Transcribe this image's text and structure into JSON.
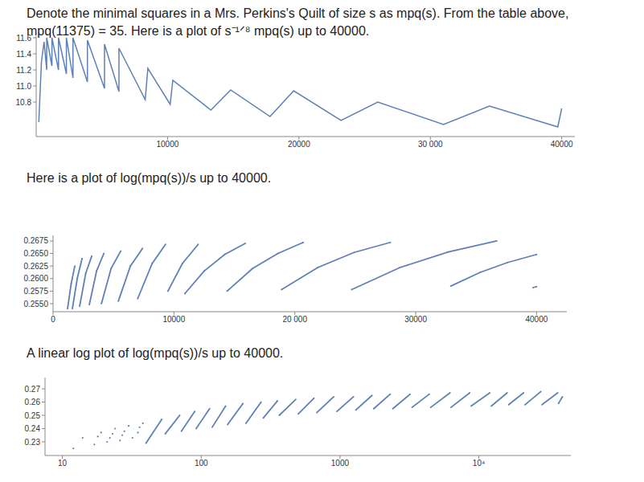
{
  "chart_data": [
    {
      "type": "line",
      "title": "Denote the minimal squares in a Mrs. Perkins's Quilt of size s as mpq(s). From the table above,\nmpq(11375) = 35. Here is a plot of s⁻¹ᐟ⁸ mpq(s) up to 40000.",
      "color": "#5e81b5",
      "grid": false,
      "xlim": [
        0,
        41000
      ],
      "xticks": [
        10000,
        20000,
        {
          "value": 30000,
          "label": "30 000"
        },
        40000
      ],
      "ylim": [
        10.37,
        11.62
      ],
      "yticks": [
        10.8,
        {
          "value": 11,
          "label": "11.0"
        },
        11.2,
        11.4,
        11.6
      ],
      "x": [
        200,
        400,
        600,
        800,
        800,
        1200,
        1200,
        1700,
        1700,
        2300,
        2300,
        2800,
        2800,
        3900,
        3900,
        5200,
        5200,
        6300,
        6300,
        8300,
        8500,
        10200,
        10400,
        13300,
        14800,
        17800,
        19600,
        23200,
        26000,
        31000,
        34500,
        39700,
        40000
      ],
      "values": [
        10.55,
        11.3,
        11.55,
        11.2,
        11.6,
        11.25,
        11.6,
        11.2,
        11.6,
        11.15,
        11.6,
        11.1,
        11.6,
        11.05,
        11.57,
        10.97,
        11.52,
        10.93,
        11.47,
        10.83,
        11.22,
        10.77,
        11.07,
        10.7,
        10.95,
        10.62,
        10.94,
        10.57,
        10.8,
        10.52,
        10.75,
        10.49,
        10.72
      ]
    },
    {
      "type": "scatter",
      "title": "Here is a plot of log(mpq(s))/s up to 40000.",
      "grid": false,
      "xlim": [
        0,
        42500
      ],
      "xticks": [
        0,
        10000,
        {
          "value": 20000,
          "label": "20 000"
        },
        30000,
        40000
      ],
      "ylim": [
        0.2534,
        0.2686
      ],
      "yticks": [
        {
          "value": 0.255,
          "label": "0.2550"
        },
        0.2575,
        {
          "value": 0.26,
          "label": "0.2600"
        },
        0.2625,
        {
          "value": 0.265,
          "label": "0.2650"
        },
        0.2675
      ],
      "series": [
        {
          "color": "#5e81b5",
          "line_style": "solid",
          "x": [
            1200,
            1500,
            1800
          ],
          "values": [
            0.254,
            0.259,
            0.2625
          ]
        },
        {
          "color": "#5e81b5",
          "line_style": "solid",
          "x": [
            1600,
            2000,
            2400
          ],
          "values": [
            0.254,
            0.26,
            0.264
          ]
        },
        {
          "color": "#5e81b5",
          "line_style": "solid",
          "x": [
            2200,
            2700,
            3200
          ],
          "values": [
            0.2545,
            0.261,
            0.2645
          ]
        },
        {
          "color": "#5e81b5",
          "line_style": "solid",
          "x": [
            3000,
            3600,
            4200
          ],
          "values": [
            0.2548,
            0.2615,
            0.265
          ]
        },
        {
          "color": "#5e81b5",
          "line_style": "solid",
          "x": [
            4000,
            4800,
            5600
          ],
          "values": [
            0.255,
            0.262,
            0.2655
          ]
        },
        {
          "color": "#5e81b5",
          "line_style": "solid",
          "x": [
            5400,
            6400,
            7400
          ],
          "values": [
            0.2555,
            0.2625,
            0.266
          ]
        },
        {
          "color": "#5e81b5",
          "line_style": "solid",
          "x": [
            7000,
            8200,
            9300
          ],
          "values": [
            0.256,
            0.263,
            0.2668
          ]
        },
        {
          "color": "#5e81b5",
          "line_style": "solid",
          "x": [
            9500,
            10700,
            12000
          ],
          "values": [
            0.2575,
            0.263,
            0.2668
          ]
        },
        {
          "color": "#5e81b5",
          "line_style": "solid",
          "x": [
            10900,
            12500,
            14200,
            15900
          ],
          "values": [
            0.257,
            0.2615,
            0.2648,
            0.267
          ]
        },
        {
          "color": "#5e81b5",
          "line_style": "solid",
          "x": [
            14400,
            16500,
            18600,
            20700
          ],
          "values": [
            0.2575,
            0.262,
            0.265,
            0.2672
          ]
        },
        {
          "color": "#5e81b5",
          "line_style": "solid",
          "x": [
            18900,
            21900,
            24900,
            27900
          ],
          "values": [
            0.2578,
            0.2622,
            0.2652,
            0.2672
          ]
        },
        {
          "color": "#5e81b5",
          "line_style": "solid",
          "x": [
            24700,
            28700,
            32700,
            36700
          ],
          "values": [
            0.2578,
            0.2622,
            0.2653,
            0.2675
          ]
        },
        {
          "color": "#5e81b5",
          "line_style": "solid",
          "x": [
            32900,
            35300,
            37600,
            40000
          ],
          "values": [
            0.2585,
            0.2612,
            0.2632,
            0.2648
          ]
        },
        {
          "color": "#5e81b5",
          "line_style": "solid",
          "x": [
            39700,
            40000
          ],
          "values": [
            0.2582,
            0.2584
          ]
        }
      ]
    },
    {
      "type": "scatter",
      "title": "A linear log plot of log(mpq(s))/s up to 40000.",
      "grid": false,
      "log": "x",
      "xlim": [
        7.5,
        46000
      ],
      "xticks": [
        10,
        100,
        1000,
        {
          "value": 10000,
          "label": "10⁴"
        }
      ],
      "ylim": [
        0.2197,
        0.2785
      ],
      "yticks": [
        0.23,
        0.24,
        0.25,
        0.26,
        0.27
      ],
      "series": [
        {
          "color": "#5e81b5",
          "line_style": "none",
          "x": [
            12,
            14,
            17,
            18,
            19,
            21,
            22,
            23,
            24,
            26,
            27,
            28,
            30,
            32,
            35,
            36,
            38
          ],
          "values": [
            0.225,
            0.233,
            0.228,
            0.234,
            0.237,
            0.23,
            0.233,
            0.236,
            0.24,
            0.231,
            0.235,
            0.238,
            0.242,
            0.233,
            0.237,
            0.241,
            0.244
          ]
        },
        {
          "color": "#5e81b5",
          "line_style": "solid",
          "x": [
            40,
            52
          ],
          "values": [
            0.229,
            0.247
          ]
        },
        {
          "color": "#5e81b5",
          "line_style": "solid",
          "x": [
            55,
            70
          ],
          "values": [
            0.236,
            0.25
          ]
        },
        {
          "color": "#5e81b5",
          "line_style": "solid",
          "x": [
            72,
            90
          ],
          "values": [
            0.238,
            0.253
          ]
        },
        {
          "color": "#5e81b5",
          "line_style": "solid",
          "x": [
            92,
            115
          ],
          "values": [
            0.24,
            0.255
          ]
        },
        {
          "color": "#5e81b5",
          "line_style": "solid",
          "x": [
            120,
            150
          ],
          "values": [
            0.241,
            0.257
          ]
        },
        {
          "color": "#5e81b5",
          "line_style": "solid",
          "x": [
            155,
            200
          ],
          "values": [
            0.243,
            0.259
          ]
        },
        {
          "color": "#5e81b5",
          "line_style": "solid",
          "x": [
            210,
            270
          ],
          "values": [
            0.244,
            0.26
          ]
        },
        {
          "color": "#5e81b5",
          "line_style": "solid",
          "x": [
            280,
            355
          ],
          "values": [
            0.248,
            0.261
          ]
        },
        {
          "color": "#5e81b5",
          "line_style": "solid",
          "x": [
            365,
            480
          ],
          "values": [
            0.25,
            0.262
          ]
        },
        {
          "color": "#5e81b5",
          "line_style": "solid",
          "x": [
            500,
            650
          ],
          "values": [
            0.251,
            0.263
          ]
        },
        {
          "color": "#5e81b5",
          "line_style": "solid",
          "x": [
            680,
            900
          ],
          "values": [
            0.252,
            0.264
          ]
        },
        {
          "color": "#5e81b5",
          "line_style": "solid",
          "x": [
            950,
            1250
          ],
          "values": [
            0.253,
            0.264
          ]
        },
        {
          "color": "#5e81b5",
          "line_style": "solid",
          "x": [
            1300,
            1700
          ],
          "values": [
            0.254,
            0.265
          ]
        },
        {
          "color": "#5e81b5",
          "line_style": "solid",
          "x": [
            1750,
            2300
          ],
          "values": [
            0.255,
            0.266
          ]
        },
        {
          "color": "#5e81b5",
          "line_style": "solid",
          "x": [
            2400,
            3200
          ],
          "values": [
            0.255,
            0.266
          ]
        },
        {
          "color": "#5e81b5",
          "line_style": "solid",
          "x": [
            3300,
            4400
          ],
          "values": [
            0.256,
            0.266
          ]
        },
        {
          "color": "#5e81b5",
          "line_style": "solid",
          "x": [
            4500,
            6200
          ],
          "values": [
            0.256,
            0.267
          ]
        },
        {
          "color": "#5e81b5",
          "line_style": "solid",
          "x": [
            6300,
            8600
          ],
          "values": [
            0.256,
            0.267
          ]
        },
        {
          "color": "#5e81b5",
          "line_style": "solid",
          "x": [
            8800,
            12000
          ],
          "values": [
            0.257,
            0.267
          ]
        },
        {
          "color": "#5e81b5",
          "line_style": "solid",
          "x": [
            12300,
            16000
          ],
          "values": [
            0.257,
            0.267
          ]
        },
        {
          "color": "#5e81b5",
          "line_style": "solid",
          "x": [
            16400,
            21000
          ],
          "values": [
            0.258,
            0.267
          ]
        },
        {
          "color": "#5e81b5",
          "line_style": "solid",
          "x": [
            21500,
            28000
          ],
          "values": [
            0.258,
            0.268
          ]
        },
        {
          "color": "#5e81b5",
          "line_style": "solid",
          "x": [
            28500,
            37000
          ],
          "values": [
            0.258,
            0.267
          ]
        },
        {
          "color": "#5e81b5",
          "line_style": "solid",
          "x": [
            37500,
            40000
          ],
          "values": [
            0.259,
            0.264
          ]
        }
      ]
    }
  ]
}
